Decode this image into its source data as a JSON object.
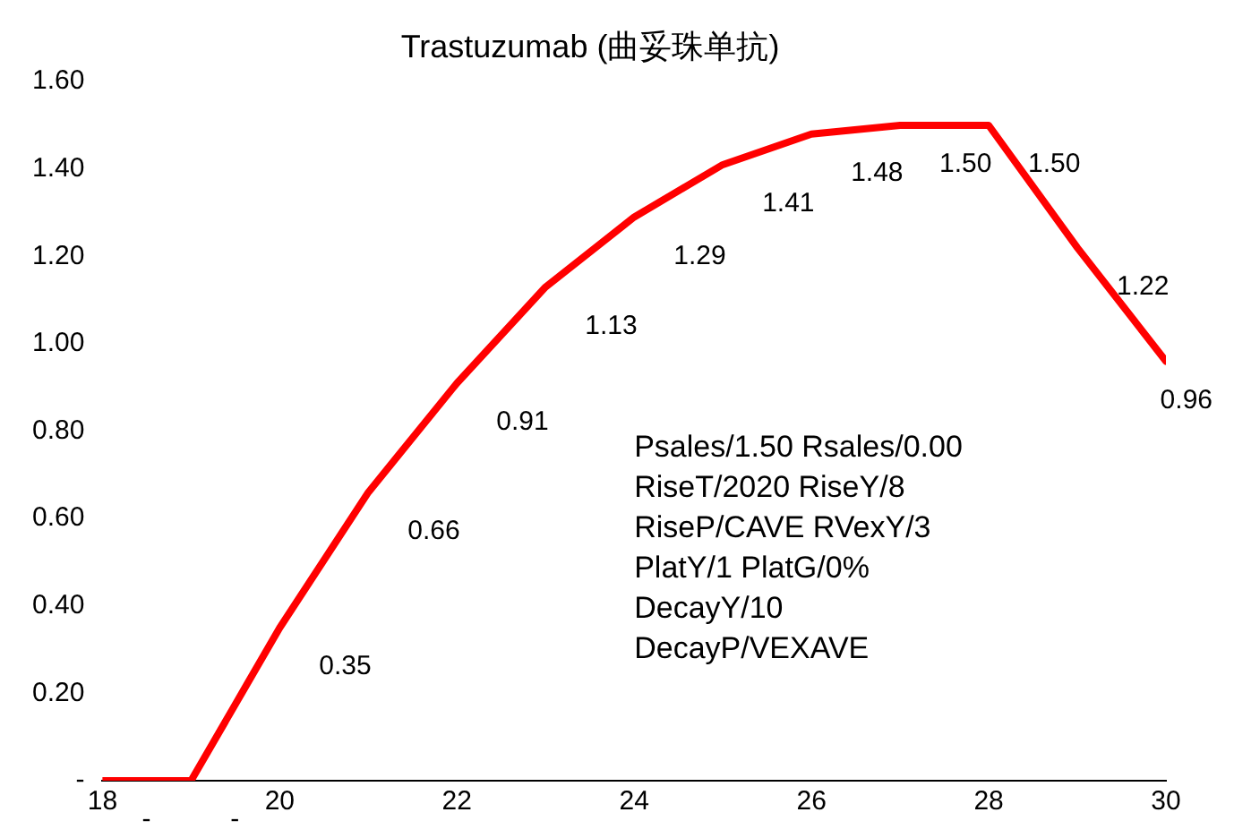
{
  "chart_data": {
    "type": "line",
    "title": "Trastuzumab (曲妥珠单抗)",
    "x": [
      18,
      19,
      20,
      21,
      22,
      23,
      24,
      25,
      26,
      27,
      28,
      29,
      30
    ],
    "series": [
      {
        "color": "#ff0000",
        "values": [
          0,
          0,
          0.35,
          0.66,
          0.91,
          1.13,
          1.29,
          1.41,
          1.48,
          1.5,
          1.5,
          1.22,
          0.96
        ],
        "value_labels": [
          "-",
          "-",
          "0.35",
          "0.66",
          "0.91",
          "1.13",
          "1.29",
          "1.41",
          "1.48",
          "1.50",
          "1.50",
          "1.22",
          "0.96"
        ]
      }
    ],
    "xlim": [
      18,
      30
    ],
    "xticks": [
      18,
      20,
      22,
      24,
      26,
      28,
      30
    ],
    "ylim": [
      0,
      1.6
    ],
    "yticks": [
      {
        "value": 0,
        "label": "-"
      },
      {
        "value": 0.2,
        "label": "0.20"
      },
      {
        "value": 0.4,
        "label": "0.40"
      },
      {
        "value": 0.6,
        "label": "0.60"
      },
      {
        "value": 0.8,
        "label": "0.80"
      },
      {
        "value": 1.0,
        "label": "1.00"
      },
      {
        "value": 1.2,
        "label": "1.20"
      },
      {
        "value": 1.4,
        "label": "1.40"
      },
      {
        "value": 1.6,
        "label": "1.60"
      }
    ],
    "grid": false,
    "legend": false,
    "marker": "none",
    "line_style": "solid",
    "annotations": [
      "Psales/1.50 Rsales/0.00",
      "RiseT/2020 RiseY/8",
      "RiseP/CAVE RVexY/3",
      "PlatY/1 PlatG/0%",
      "DecayY/10",
      "DecayP/VEXAVE"
    ]
  }
}
